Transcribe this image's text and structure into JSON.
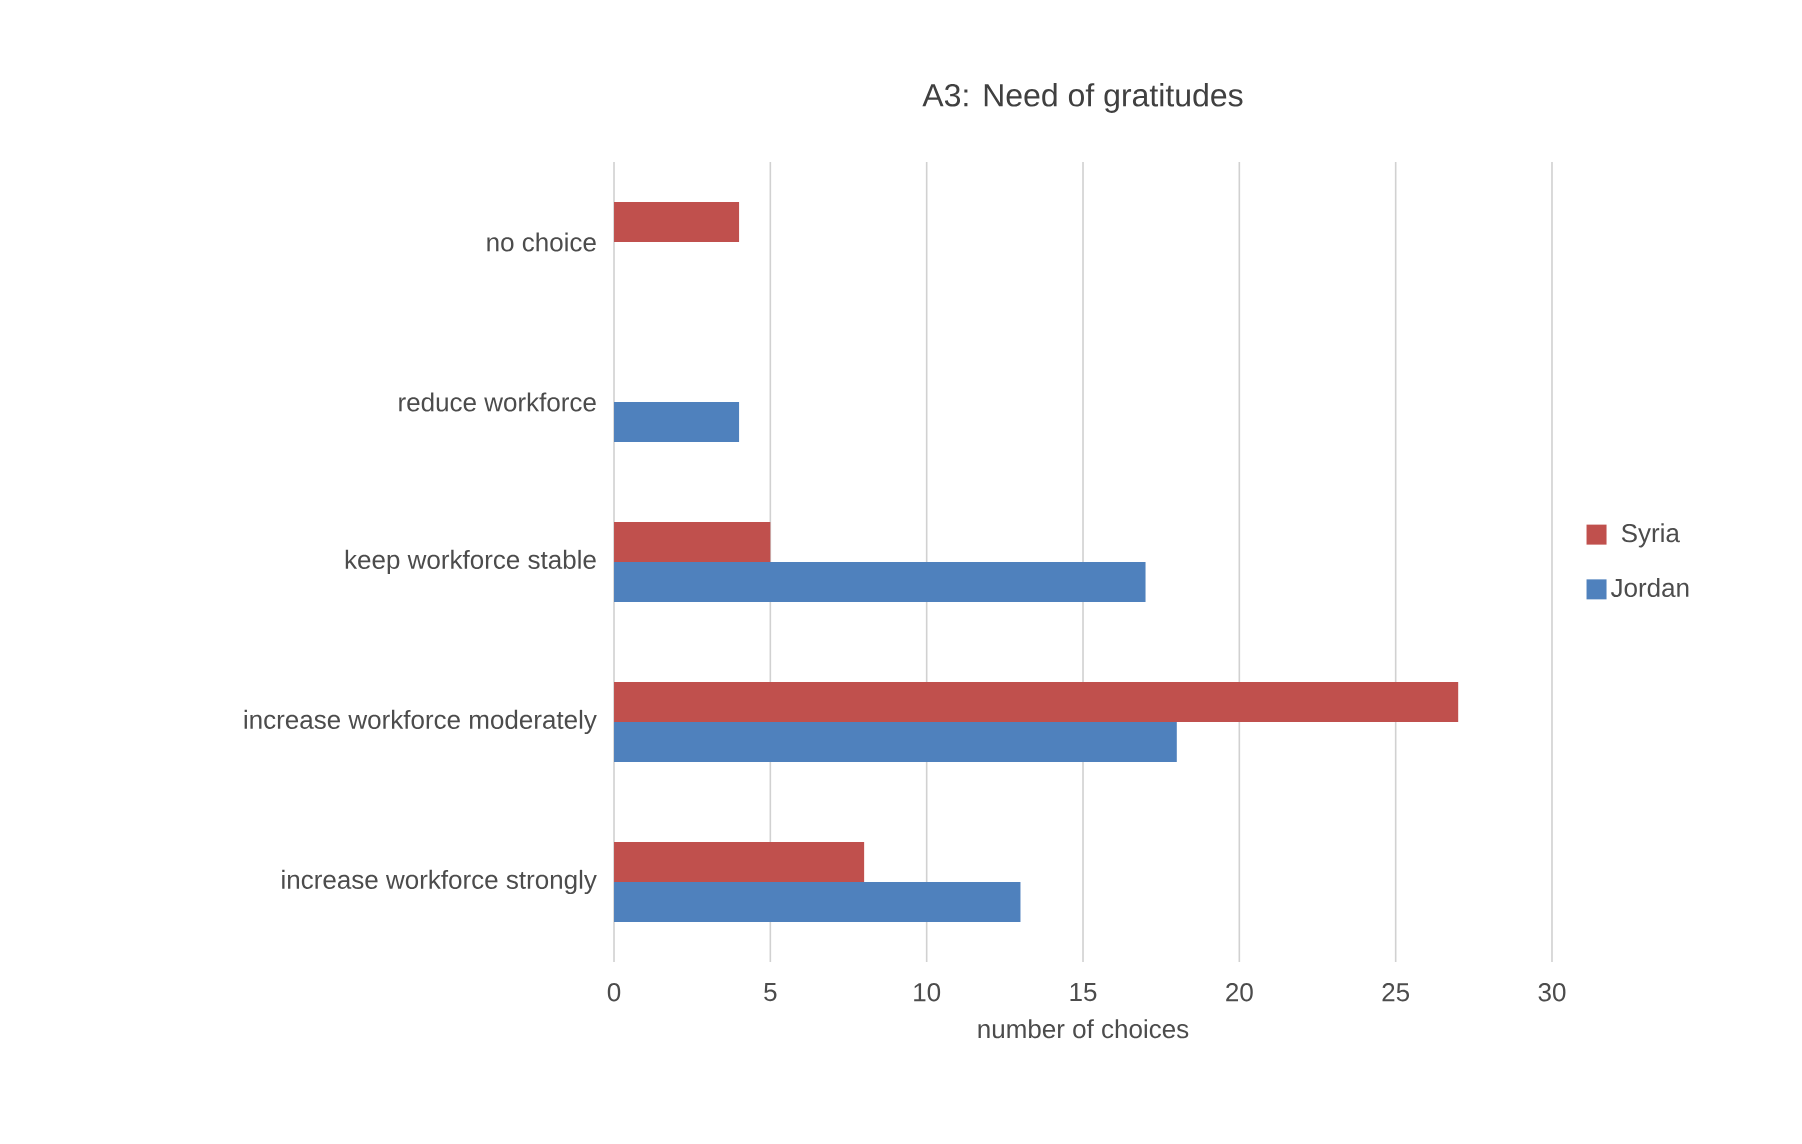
{
  "chart_data": {
    "type": "bar",
    "orientation": "horizontal",
    "title": "A3: Need of gratitudes",
    "xlabel": "number of choices",
    "categories": [
      "no choice",
      "reduce workforce",
      "keep workforce stable",
      "increase workforce moderately",
      "increase workforce strongly"
    ],
    "series": [
      {
        "name": "Syria",
        "color": "#c0504d",
        "values": [
          4,
          null,
          5,
          27,
          8
        ]
      },
      {
        "name": "Jordan",
        "color": "#4f81bd",
        "values": [
          null,
          4,
          17,
          18,
          13
        ]
      }
    ],
    "xlim": [
      0,
      30
    ],
    "xticks": [
      0,
      5,
      10,
      15,
      20,
      25,
      30
    ],
    "grid": "x",
    "legend": "right"
  }
}
